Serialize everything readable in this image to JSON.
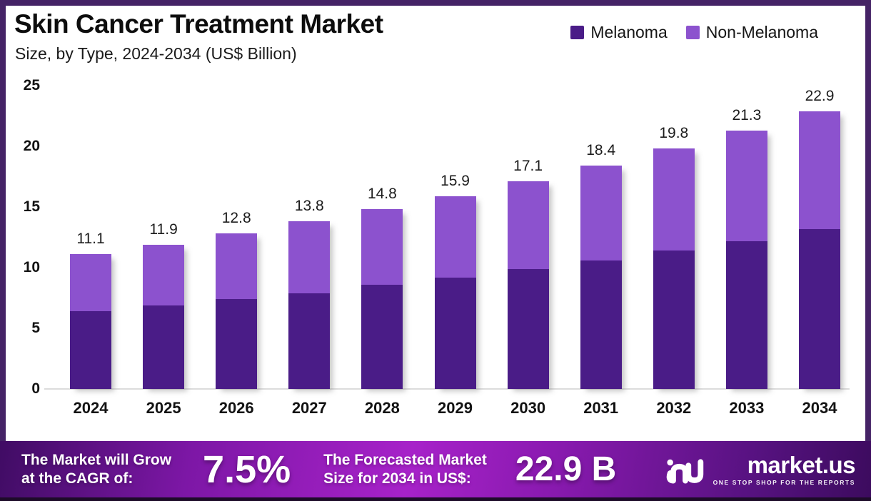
{
  "header": {
    "title": "Skin Cancer Treatment Market",
    "subtitle": "Size, by Type, 2024-2034 (US$ Billion)"
  },
  "chart_data": {
    "type": "bar",
    "stacked": true,
    "title": "Skin Cancer Treatment Market Size, by Type, 2024-2034 (US$ Billion)",
    "categories": [
      "2024",
      "2025",
      "2026",
      "2027",
      "2028",
      "2029",
      "2030",
      "2031",
      "2032",
      "2033",
      "2034"
    ],
    "series": [
      {
        "name": "Melanoma",
        "color": "#4A1C87",
        "values": [
          6.4,
          6.9,
          7.4,
          7.9,
          8.6,
          9.2,
          9.9,
          10.6,
          11.4,
          12.2,
          13.2
        ]
      },
      {
        "name": "Non-Melanoma",
        "color": "#8C52CE",
        "values": [
          4.7,
          5.0,
          5.4,
          5.9,
          6.2,
          6.7,
          7.2,
          7.8,
          8.4,
          9.1,
          9.7
        ]
      }
    ],
    "totals": [
      11.1,
      11.9,
      12.8,
      13.8,
      14.8,
      15.9,
      17.1,
      18.4,
      19.8,
      21.3,
      22.9
    ],
    "total_labels": [
      "11.1",
      "11.9",
      "12.8",
      "13.8",
      "14.8",
      "15.9",
      "17.1",
      "18.4",
      "19.8",
      "21.3",
      "22.9"
    ],
    "xlabel": "",
    "ylabel": "",
    "ylim": [
      0,
      25
    ],
    "yticks": [
      0,
      5,
      10,
      15,
      20,
      25
    ],
    "grid": false,
    "legend_position": "top-right"
  },
  "banner": {
    "cagr_line1": "The Market will Grow",
    "cagr_line2": "at the CAGR of:",
    "cagr_value": "7.5%",
    "forecast_line1": "The Forecasted Market",
    "forecast_line2": "Size for 2034 in US$:",
    "forecast_value": "22.9 B",
    "logo_text": "market.us",
    "logo_tagline": "ONE STOP SHOP FOR THE REPORTS"
  },
  "colors": {
    "frame_border": "#452366",
    "background": "#ffffff",
    "melanoma": "#4A1C87",
    "non_melanoma": "#8C52CE",
    "banner_center": "#A722C9",
    "banner_edge": "#400C64",
    "banner_strip": "#1D0B29",
    "baseline": "#DCDCDC",
    "text": "#121212"
  }
}
